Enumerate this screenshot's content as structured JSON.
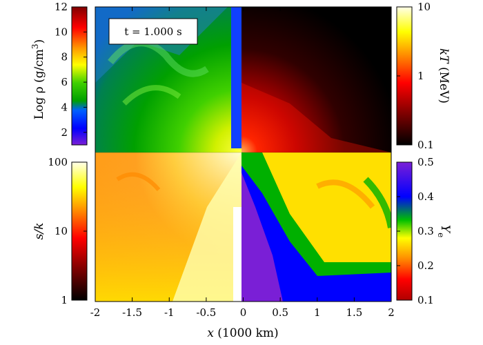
{
  "chart_data": {
    "type": "heatmap",
    "time_label": "t = 1.000 s",
    "x_axis": {
      "label": "x (1000 km)",
      "ticks": [
        "-2",
        "-1.5",
        "-1",
        "-0.5",
        "0",
        "0.5",
        "1",
        "1.5",
        "2"
      ],
      "range": [
        -2,
        2
      ]
    },
    "panels": [
      {
        "quadrant": "top-left",
        "quantity": "Log ρ (g/cm3)",
        "colorbar_side": "left",
        "colorbar_ticks": [
          "2",
          "4",
          "6",
          "8",
          "10",
          "12"
        ],
        "range": [
          1,
          12
        ],
        "scale": "linear",
        "colormap": [
          "#7a1fd6",
          "#0000ff",
          "#00c000",
          "#ffff00",
          "#ff0000",
          "#800000"
        ]
      },
      {
        "quadrant": "top-right",
        "quantity": "kT (MeV)",
        "colorbar_side": "right",
        "colorbar_ticks": [
          "0.1",
          "1",
          "10"
        ],
        "range": [
          0.1,
          10
        ],
        "scale": "log",
        "colormap": [
          "#000000",
          "#8b0000",
          "#ff0000",
          "#ff8c00",
          "#ffff00",
          "#ffffe0"
        ]
      },
      {
        "quadrant": "bottom-left",
        "quantity": "s/k",
        "colorbar_side": "left",
        "colorbar_ticks": [
          "1",
          "10",
          "100"
        ],
        "range": [
          1,
          100
        ],
        "scale": "log",
        "colormap": [
          "#000000",
          "#8b0000",
          "#ff0000",
          "#ff8c00",
          "#ffff00",
          "#ffffe0"
        ]
      },
      {
        "quadrant": "bottom-right",
        "quantity": "Ye",
        "colorbar_side": "right",
        "colorbar_ticks": [
          "0.1",
          "0.2",
          "0.3",
          "0.4",
          "0.5"
        ],
        "range": [
          0.1,
          0.5
        ],
        "scale": "linear",
        "colormap": [
          "#b00000",
          "#ff0000",
          "#ff8c00",
          "#ffff00",
          "#00c000",
          "#0000ff",
          "#7a1fd6"
        ]
      }
    ]
  },
  "labels": {
    "rho": {
      "main": "Log ρ (g/cm",
      "sup": "3",
      "tail": ")"
    },
    "kt": {
      "it": "kT",
      "rest": " (MeV)"
    },
    "sk": {
      "it": "s/k"
    },
    "ye": {
      "it": "Y",
      "sub": "e"
    },
    "x": {
      "it": "x",
      "rest": " (1000 km)"
    }
  }
}
